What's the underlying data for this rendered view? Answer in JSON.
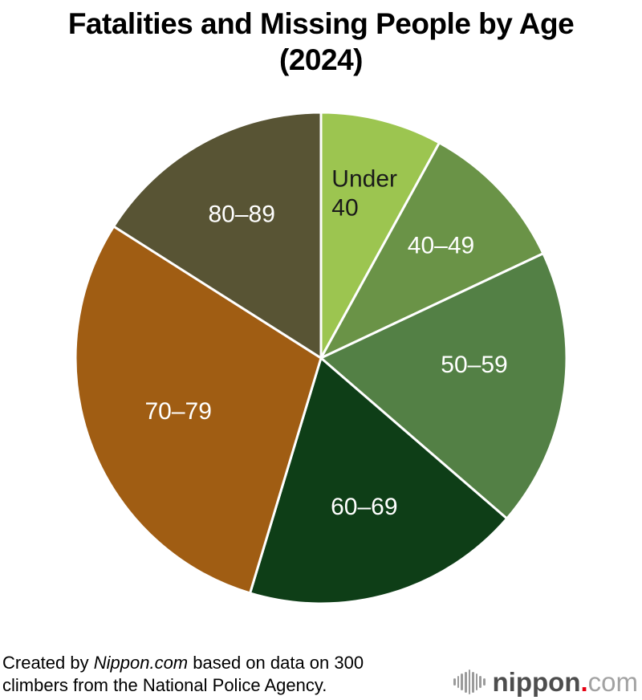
{
  "header": {
    "title_line1": "Fatalities and Missing People by Age",
    "title_line2": "(2024)"
  },
  "chart_data": {
    "type": "pie",
    "title": "Fatalities and Missing People by Age (2024)",
    "unit": "climbers",
    "total": 300,
    "start_angle_deg": 0,
    "direction": "clockwise",
    "separator_color": "#ffffff",
    "slices": [
      {
        "label": "Under 40",
        "value": 24,
        "color": "#9cc550",
        "label_color": "#1a1a1a",
        "label_lines": [
          "Under",
          "40"
        ],
        "label_radius_frac": 0.7
      },
      {
        "label": "40–49",
        "value": 30,
        "color": "#6a9347",
        "label_color": "#ffffff",
        "label_radius_frac": 0.67
      },
      {
        "label": "50–59",
        "value": 55,
        "color": "#538045",
        "label_color": "#ffffff",
        "label_radius_frac": 0.63,
        "label_dy": -18
      },
      {
        "label": "60–69",
        "value": 55,
        "color": "#0e3e17",
        "label_color": "#ffffff",
        "label_radius_frac": 0.63
      },
      {
        "label": "70–79",
        "value": 88,
        "color": "#a05d13",
        "label_color": "#ffffff",
        "label_radius_frac": 0.62
      },
      {
        "label": "80–89",
        "value": 48,
        "color": "#585434",
        "label_color": "#ffffff",
        "label_radius_frac": 0.67
      }
    ]
  },
  "footer": {
    "credit_prefix": "Created by ",
    "credit_brand": "Nippon.com",
    "credit_suffix": " based on data on 300",
    "credit_line2": "climbers from the National Police Agency.",
    "logo_name": "nippon",
    "logo_dot": ".",
    "logo_tld": "com",
    "logo_red": "#e60012",
    "logo_gray": "#4d4d4d"
  }
}
